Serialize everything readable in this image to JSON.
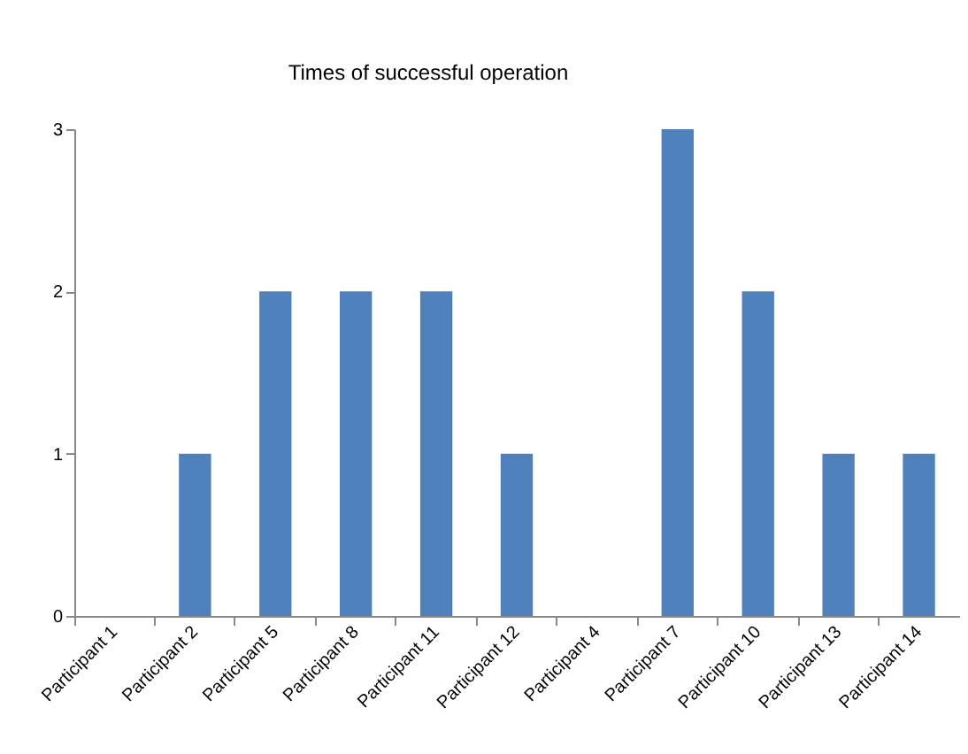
{
  "chart_data": {
    "type": "bar",
    "title": "Times of successful operation",
    "categories": [
      "Participant 1",
      "Participant 2",
      "Participant 5",
      "Participant 8",
      "Participant 11",
      "Participant 12",
      "Participant 4",
      "Participant 7",
      "Participant 10",
      "Participant 13",
      "Participant 14"
    ],
    "values": [
      0,
      1,
      2,
      2,
      2,
      1,
      0,
      3,
      2,
      1,
      1
    ],
    "color": "#4f81bd",
    "ylim": [
      0,
      3
    ],
    "yticks": [
      0,
      1,
      2,
      3
    ],
    "grid": false
  }
}
